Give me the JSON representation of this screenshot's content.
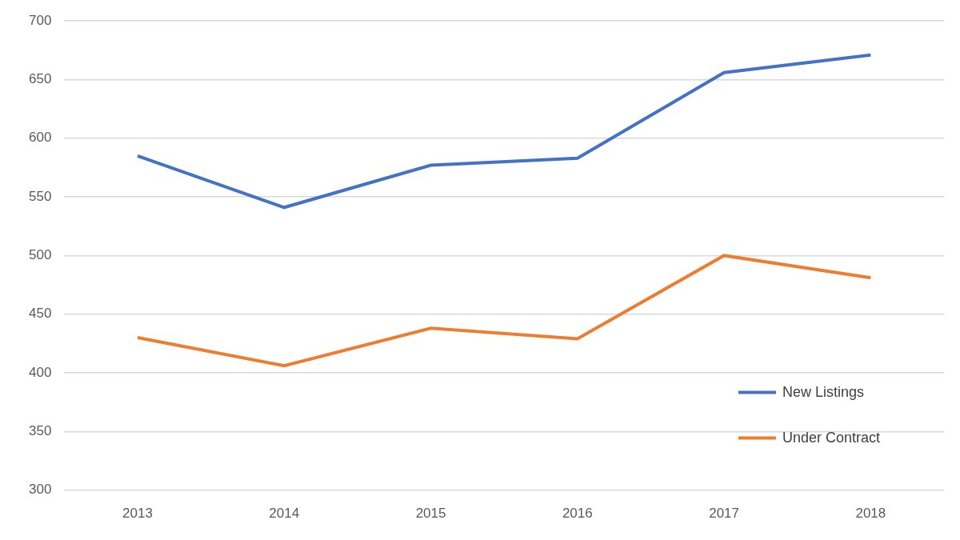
{
  "chart_data": {
    "type": "line",
    "categories": [
      "2013",
      "2014",
      "2015",
      "2016",
      "2017",
      "2018"
    ],
    "series": [
      {
        "name": "New Listings",
        "color": "#4472c4",
        "values": [
          585,
          541,
          577,
          583,
          656,
          671
        ]
      },
      {
        "name": "Under Contract",
        "color": "#ed7d31",
        "values": [
          430,
          406,
          438,
          429,
          500,
          481
        ]
      }
    ],
    "ylim": [
      300,
      700
    ],
    "yticks": [
      300,
      350,
      400,
      450,
      500,
      550,
      600,
      650,
      700
    ],
    "grid": true,
    "legend": "lower right"
  }
}
